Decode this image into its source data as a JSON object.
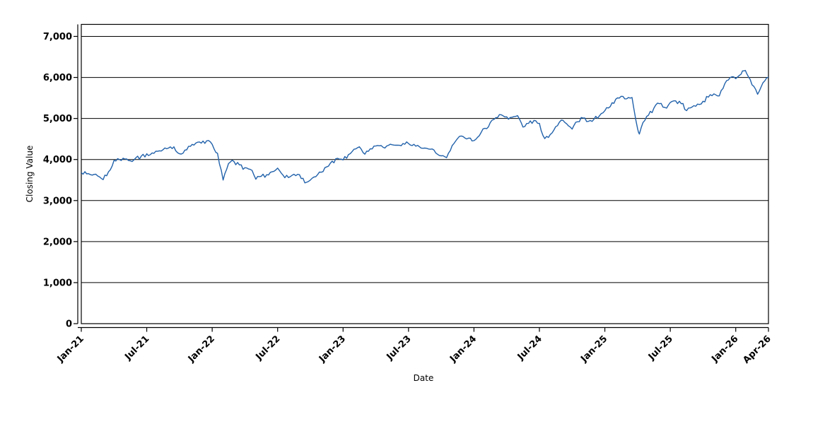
{
  "chart_data": {
    "type": "line",
    "title": "",
    "xlabel": "Date",
    "ylabel": "Closing Value",
    "legend": "none",
    "grid": "horizontal black gridlines at every 1000",
    "frame": "full box with offset left/bottom tick spines",
    "line_color": "#2262ab",
    "axis_color": "#000000",
    "background_color": "#ffffff",
    "ylim": [
      0,
      7000
    ],
    "y_tick_values": [
      0,
      1000,
      2000,
      3000,
      4000,
      5000,
      6000,
      7000
    ],
    "y_tick_labels": [
      "0",
      "1,000",
      "2,000",
      "3,000",
      "4,000",
      "5,000",
      "6,000",
      "7,000"
    ],
    "x_tick_labels": [
      "Jan-21",
      "Jul-21",
      "Jan-22",
      "Jul-22",
      "Jan-23",
      "Jul-23",
      "Jan-24",
      "Jul-24",
      "Jan-25",
      "Jul-25",
      "Jan-26",
      "Apr-26"
    ],
    "x_tick_months": [
      "2021-01",
      "2021-07",
      "2022-01",
      "2022-07",
      "2023-01",
      "2023-07",
      "2024-01",
      "2024-07",
      "2025-01",
      "2025-07",
      "2026-01",
      "2026-04"
    ],
    "xlim_months": [
      "2021-01",
      "2026-04"
    ],
    "series": [
      {
        "name": "Closing Value",
        "points": [
          [
            "2021-01-01",
            3680
          ],
          [
            "2021-01-16",
            3650
          ],
          [
            "2021-02-01",
            3620
          ],
          [
            "2021-02-16",
            3600
          ],
          [
            "2021-03-01",
            3510
          ],
          [
            "2021-03-16",
            3700
          ],
          [
            "2021-04-01",
            3980
          ],
          [
            "2021-04-16",
            4000
          ],
          [
            "2021-05-01",
            4010
          ],
          [
            "2021-05-16",
            3970
          ],
          [
            "2021-06-01",
            4040
          ],
          [
            "2021-06-16",
            4080
          ],
          [
            "2021-07-01",
            4140
          ],
          [
            "2021-07-16",
            4160
          ],
          [
            "2021-08-01",
            4200
          ],
          [
            "2021-08-16",
            4240
          ],
          [
            "2021-09-01",
            4280
          ],
          [
            "2021-09-16",
            4310
          ],
          [
            "2021-10-01",
            4140
          ],
          [
            "2021-10-16",
            4230
          ],
          [
            "2021-11-01",
            4320
          ],
          [
            "2021-11-16",
            4400
          ],
          [
            "2021-12-01",
            4400
          ],
          [
            "2021-12-16",
            4455
          ],
          [
            "2022-01-01",
            4370
          ],
          [
            "2022-01-16",
            4150
          ],
          [
            "2022-02-01",
            3500
          ],
          [
            "2022-02-16",
            3900
          ],
          [
            "2022-03-01",
            3950
          ],
          [
            "2022-03-16",
            3870
          ],
          [
            "2022-04-01",
            3800
          ],
          [
            "2022-04-16",
            3760
          ],
          [
            "2022-05-01",
            3520
          ],
          [
            "2022-05-16",
            3590
          ],
          [
            "2022-06-01",
            3630
          ],
          [
            "2022-06-16",
            3700
          ],
          [
            "2022-07-01",
            3790
          ],
          [
            "2022-07-16",
            3620
          ],
          [
            "2022-08-01",
            3560
          ],
          [
            "2022-08-16",
            3640
          ],
          [
            "2022-09-01",
            3630
          ],
          [
            "2022-09-16",
            3430
          ],
          [
            "2022-10-01",
            3500
          ],
          [
            "2022-10-16",
            3580
          ],
          [
            "2022-11-01",
            3690
          ],
          [
            "2022-11-16",
            3820
          ],
          [
            "2022-12-01",
            3960
          ],
          [
            "2022-12-16",
            4030
          ],
          [
            "2023-01-01",
            3990
          ],
          [
            "2023-01-16",
            4120
          ],
          [
            "2023-02-01",
            4250
          ],
          [
            "2023-02-16",
            4310
          ],
          [
            "2023-03-01",
            4130
          ],
          [
            "2023-03-16",
            4260
          ],
          [
            "2023-04-01",
            4330
          ],
          [
            "2023-04-16",
            4340
          ],
          [
            "2023-05-01",
            4330
          ],
          [
            "2023-05-16",
            4360
          ],
          [
            "2023-06-01",
            4350
          ],
          [
            "2023-06-16",
            4390
          ],
          [
            "2023-07-01",
            4390
          ],
          [
            "2023-07-16",
            4370
          ],
          [
            "2023-08-01",
            4310
          ],
          [
            "2023-08-16",
            4280
          ],
          [
            "2023-09-01",
            4250
          ],
          [
            "2023-09-16",
            4160
          ],
          [
            "2023-10-01",
            4090
          ],
          [
            "2023-10-16",
            4045
          ],
          [
            "2023-11-01",
            4340
          ],
          [
            "2023-11-16",
            4510
          ],
          [
            "2023-12-01",
            4560
          ],
          [
            "2023-12-16",
            4520
          ],
          [
            "2024-01-01",
            4460
          ],
          [
            "2024-01-16",
            4580
          ],
          [
            "2024-02-01",
            4760
          ],
          [
            "2024-02-16",
            4900
          ],
          [
            "2024-03-01",
            5020
          ],
          [
            "2024-03-16",
            5090
          ],
          [
            "2024-04-01",
            5040
          ],
          [
            "2024-04-16",
            5030
          ],
          [
            "2024-05-01",
            5070
          ],
          [
            "2024-05-16",
            4790
          ],
          [
            "2024-06-01",
            4880
          ],
          [
            "2024-06-16",
            4950
          ],
          [
            "2024-07-01",
            4880
          ],
          [
            "2024-07-16",
            4510
          ],
          [
            "2024-08-01",
            4610
          ],
          [
            "2024-08-16",
            4800
          ],
          [
            "2024-09-01",
            4960
          ],
          [
            "2024-09-16",
            4870
          ],
          [
            "2024-10-01",
            4740
          ],
          [
            "2024-10-16",
            4920
          ],
          [
            "2024-11-01",
            5010
          ],
          [
            "2024-11-16",
            4930
          ],
          [
            "2024-12-01",
            4980
          ],
          [
            "2024-12-16",
            5060
          ],
          [
            "2025-01-01",
            5190
          ],
          [
            "2025-01-16",
            5290
          ],
          [
            "2025-02-01",
            5470
          ],
          [
            "2025-02-16",
            5540
          ],
          [
            "2025-03-01",
            5480
          ],
          [
            "2025-03-16",
            5510
          ],
          [
            "2025-04-01",
            4750
          ],
          [
            "2025-04-06",
            4620
          ],
          [
            "2025-04-16",
            4900
          ],
          [
            "2025-05-01",
            5080
          ],
          [
            "2025-05-16",
            5250
          ],
          [
            "2025-06-01",
            5360
          ],
          [
            "2025-06-16",
            5270
          ],
          [
            "2025-07-01",
            5390
          ],
          [
            "2025-07-16",
            5430
          ],
          [
            "2025-08-01",
            5360
          ],
          [
            "2025-08-16",
            5190
          ],
          [
            "2025-09-01",
            5280
          ],
          [
            "2025-09-16",
            5350
          ],
          [
            "2025-10-01",
            5420
          ],
          [
            "2025-10-16",
            5520
          ],
          [
            "2025-11-01",
            5600
          ],
          [
            "2025-11-16",
            5550
          ],
          [
            "2025-12-01",
            5850
          ],
          [
            "2025-12-16",
            6000
          ],
          [
            "2026-01-01",
            5970
          ],
          [
            "2026-01-16",
            6080
          ],
          [
            "2026-01-24",
            6160
          ],
          [
            "2026-02-01",
            6100
          ],
          [
            "2026-02-16",
            5820
          ],
          [
            "2026-03-01",
            5590
          ],
          [
            "2026-03-16",
            5870
          ],
          [
            "2026-04-01",
            6010
          ]
        ]
      }
    ]
  }
}
